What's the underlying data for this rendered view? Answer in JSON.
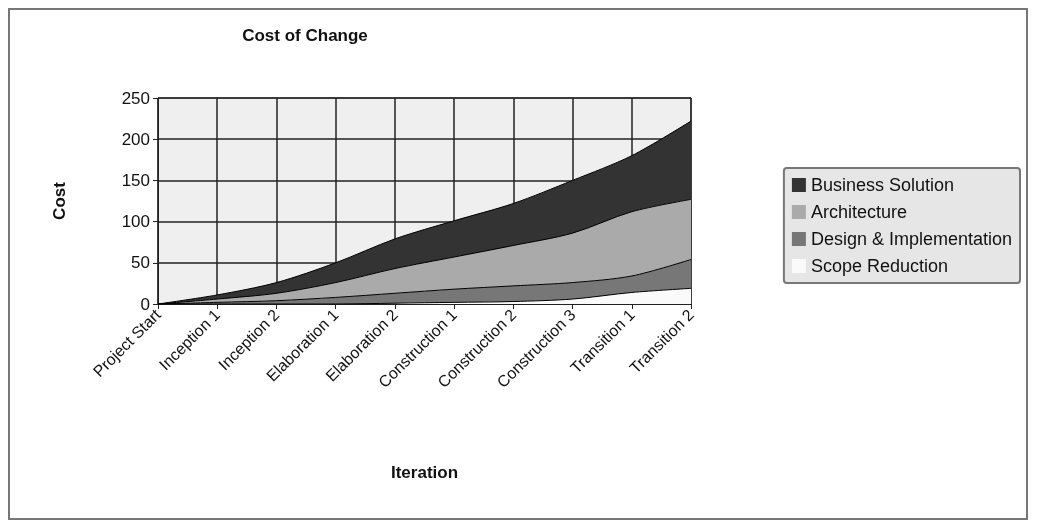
{
  "chart_data": {
    "type": "area",
    "title": "Cost of Change",
    "xlabel": "Iteration",
    "ylabel": "Cost",
    "categories": [
      "Project Start",
      "Inception 1",
      "Inception 2",
      "Elaboration 1",
      "Elaboration 2",
      "Construction 1",
      "Construction 2",
      "Construction 3",
      "Transition 1",
      "Transition 2"
    ],
    "stacked": true,
    "ylim": [
      0,
      250
    ],
    "yticks": [
      0,
      50,
      100,
      150,
      200,
      250
    ],
    "grid": true,
    "legend": "right",
    "series": [
      {
        "name": "Scope Reduction",
        "color": "#fafafa",
        "values": [
          0,
          0,
          0,
          0,
          1,
          2,
          3,
          6,
          14,
          19
        ]
      },
      {
        "name": "Design & Implementation",
        "color": "#777777",
        "values": [
          0,
          2,
          4,
          8,
          12,
          16,
          19,
          20,
          20,
          35
        ]
      },
      {
        "name": "Architecture",
        "color": "#aaaaaa",
        "values": [
          0,
          4,
          9,
          18,
          30,
          39,
          49,
          60,
          78,
          73
        ]
      },
      {
        "name": "Business Solution",
        "color": "#333333",
        "values": [
          0,
          5,
          13,
          24,
          36,
          44,
          51,
          64,
          68,
          95
        ]
      }
    ]
  }
}
